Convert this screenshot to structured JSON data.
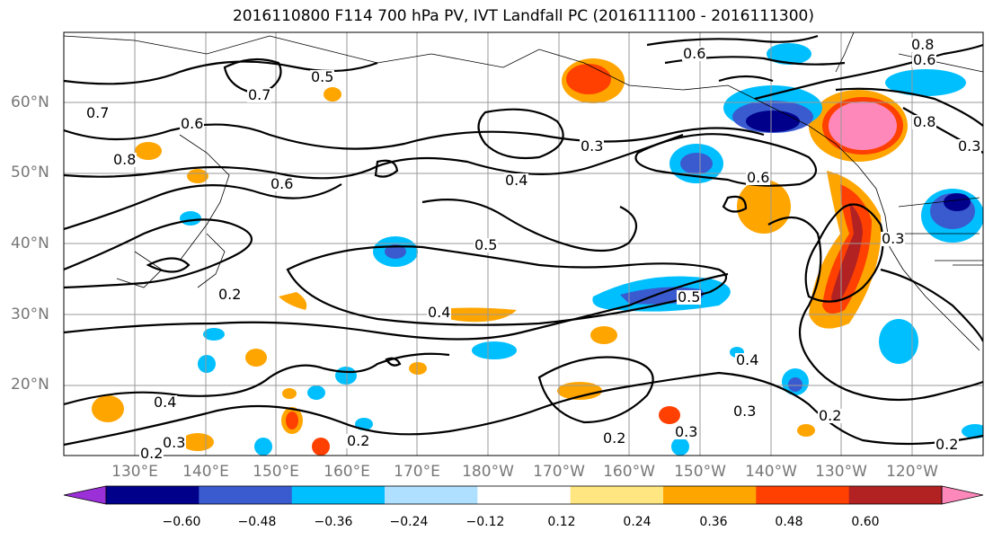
{
  "title": "2016110800 F114 700 hPa PV, IVT Landfall PC (2016111100 - 2016111300)",
  "lat_labels": [
    "60°N",
    "50°N",
    "40°N",
    "30°N",
    "20°N"
  ],
  "lon_labels": [
    "130°E",
    "140°E",
    "150°E",
    "160°E",
    "170°E",
    "180°W",
    "170°W",
    "160°W",
    "150°W",
    "140°W",
    "130°W",
    "120°W"
  ],
  "colorbar": {
    "ticks": [
      "−0.60",
      "−0.48",
      "−0.36",
      "−0.24",
      "−0.12",
      "0.12",
      "0.24",
      "0.36",
      "0.48",
      "0.60"
    ],
    "colors": [
      "#9b30d9",
      "#00008b",
      "#3a5bd0",
      "#00bfff",
      "#b0e0ff",
      "#ffffff",
      "#ffe680",
      "#ffa500",
      "#ff4000",
      "#b22222",
      "#ff88bb"
    ]
  },
  "contour_labels": [
    "0.7",
    "0.5",
    "0.8",
    "0.6",
    "0.7",
    "0.6",
    "0.5",
    "0.6",
    "0.8",
    "0.6",
    "0.4",
    "0.3",
    "0.4",
    "0.5",
    "0.4",
    "0.3",
    "0.3",
    "0.2",
    "0.2",
    "0.2",
    "0.4",
    "0.2",
    "0.2",
    "0.6",
    "0.3",
    "0.3",
    "0.8",
    "0.3",
    "0.2"
  ]
}
